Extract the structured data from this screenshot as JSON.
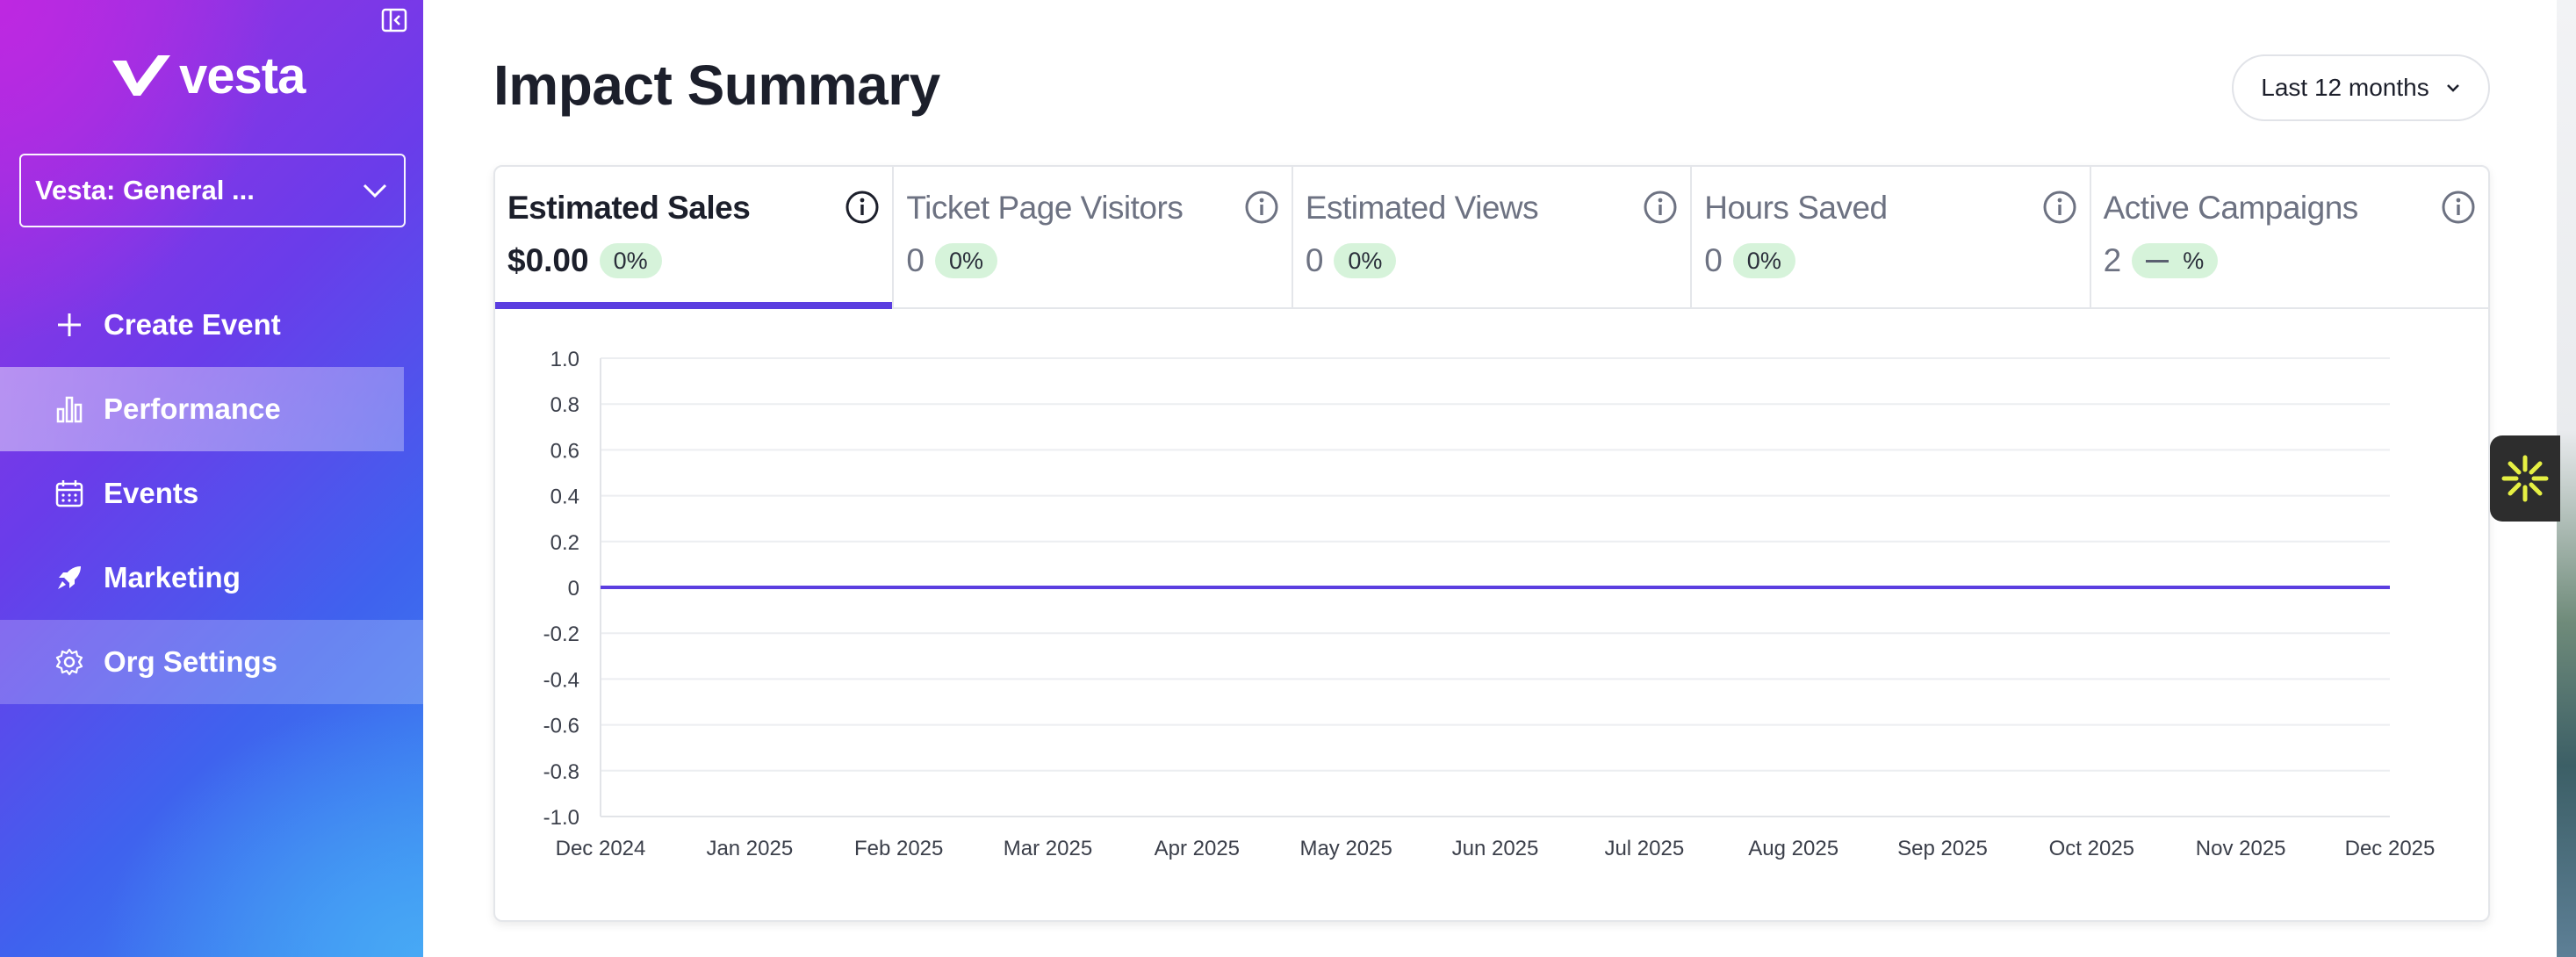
{
  "brand": {
    "name": "vesta"
  },
  "sidebar": {
    "org_selector": {
      "value": "Vesta: General ..."
    },
    "items": [
      {
        "label": "Create Event",
        "icon": "plus-icon"
      },
      {
        "label": "Performance",
        "icon": "bar-chart-icon",
        "active": true
      },
      {
        "label": "Events",
        "icon": "calendar-icon"
      },
      {
        "label": "Marketing",
        "icon": "rocket-icon"
      },
      {
        "label": "Org Settings",
        "icon": "gear-icon"
      }
    ]
  },
  "header": {
    "title": "Impact Summary",
    "range": "Last 12 months"
  },
  "tabs": [
    {
      "label": "Estimated Sales",
      "value": "$0.00",
      "change": "0%",
      "active": true
    },
    {
      "label": "Ticket Page Visitors",
      "value": "0",
      "change": "0%"
    },
    {
      "label": "Estimated Views",
      "value": "0",
      "change": "0%"
    },
    {
      "label": "Hours Saved",
      "value": "0",
      "change": "0%"
    },
    {
      "label": "Active Campaigns",
      "value": "2",
      "change": "%"
    }
  ],
  "colors": {
    "accent": "#5b3ee0",
    "badge_bg": "#d6f3da",
    "widget_star": "#e6f043"
  },
  "chart_data": {
    "type": "line",
    "categories": [
      "Dec 2024",
      "Jan 2025",
      "Feb 2025",
      "Mar 2025",
      "Apr 2025",
      "May 2025",
      "Jun 2025",
      "Jul 2025",
      "Aug 2025",
      "Sep 2025",
      "Oct 2025",
      "Nov 2025",
      "Dec 2025"
    ],
    "series": [
      {
        "values": [
          0,
          0,
          0,
          0,
          0,
          0,
          0,
          0,
          0,
          0,
          0,
          0,
          0
        ],
        "color": "#5b3ee0"
      }
    ],
    "yticks": [
      "1.0",
      "0.8",
      "0.6",
      "0.4",
      "0.2",
      "0",
      "-0.2",
      "-0.4",
      "-0.6",
      "-0.8",
      "-1.0"
    ],
    "ylim": [
      -1,
      1
    ],
    "grid": true,
    "legend": "none"
  }
}
